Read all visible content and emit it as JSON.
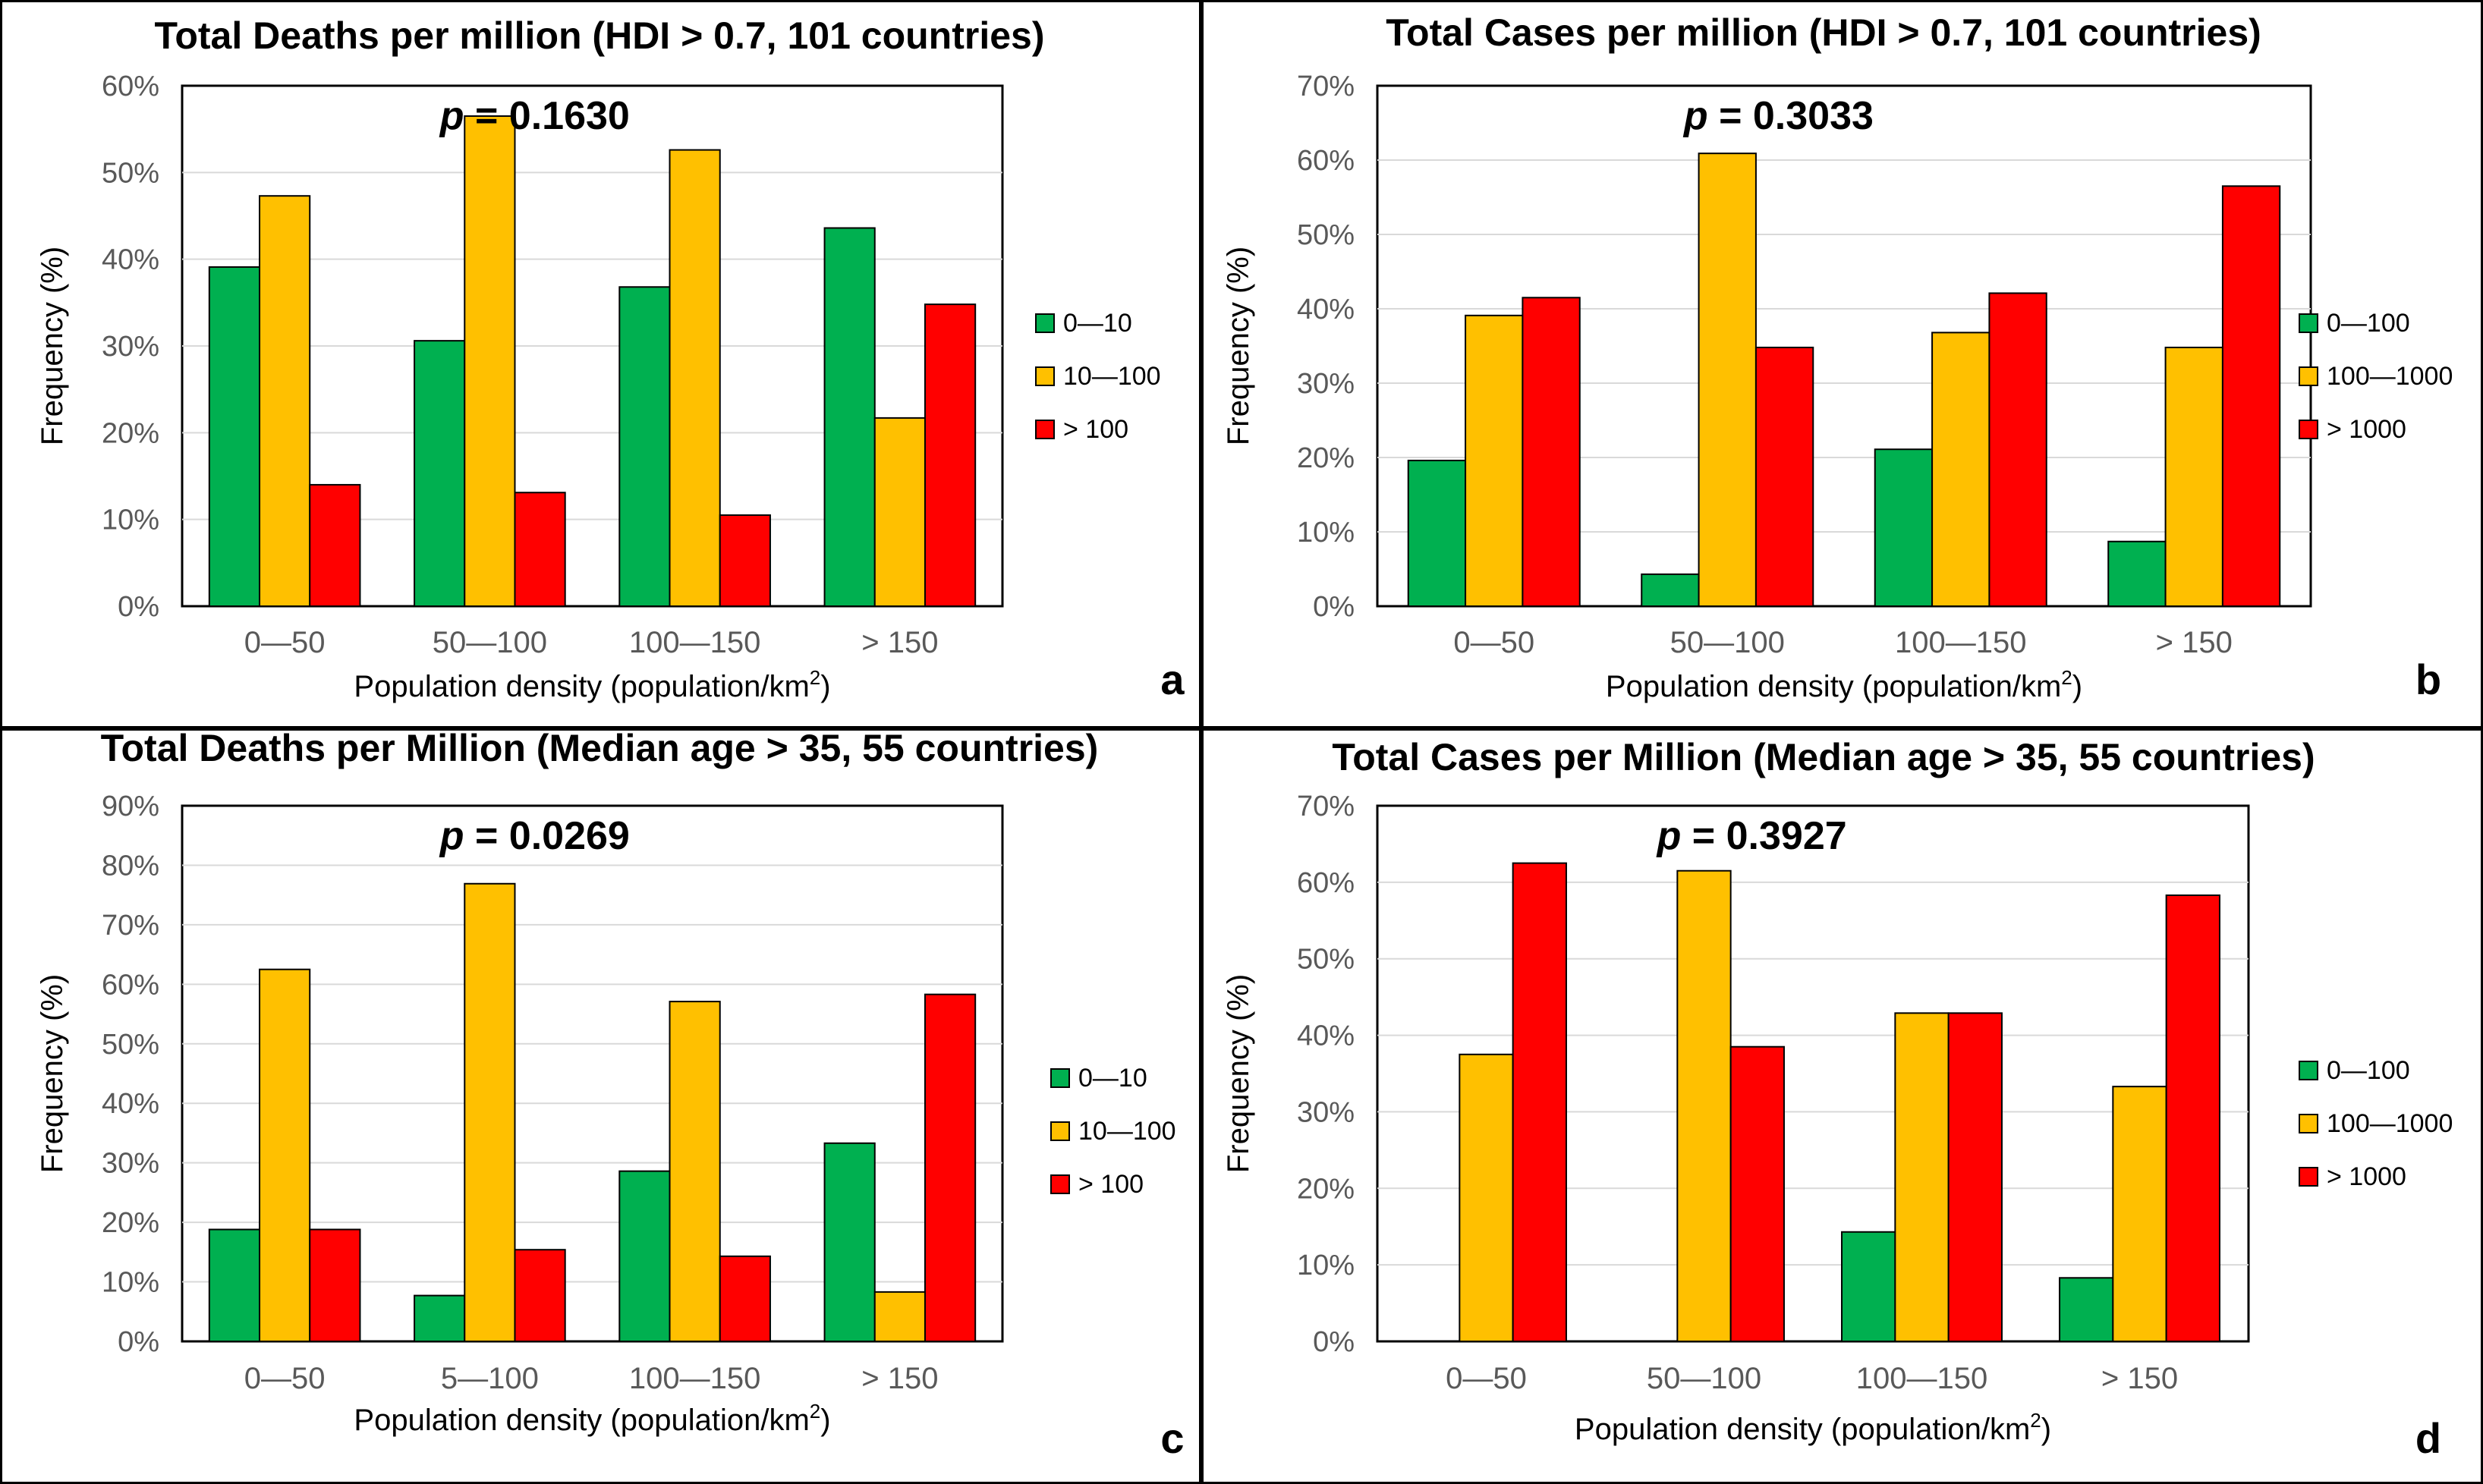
{
  "colors": {
    "green": "#00B050",
    "yellow": "#FFC000",
    "red": "#FF0000",
    "grid": "#D9D9D9",
    "tick": "#595959",
    "text": "#000000"
  },
  "chart_data": [
    {
      "type": "bar",
      "panel_label": "a",
      "title": "Total Deaths per million (HDI > 0.7, 101 countries)",
      "p_label": "p",
      "p_text": " = 0.1630",
      "xlabel": "Population density (population/km",
      "xlabel_sup": "2",
      "xlabel_end": ")",
      "ylabel": "Frequency (%)",
      "ylim": [
        0,
        60
      ],
      "ytick_step": 10,
      "categories": [
        "0—50",
        "50—100",
        "100—150",
        "> 150"
      ],
      "series": [
        {
          "name": "0—10",
          "color": "#00B050",
          "values": [
            39.1,
            30.6,
            36.8,
            43.6
          ]
        },
        {
          "name": "10—100",
          "color": "#FFC000",
          "values": [
            47.3,
            56.5,
            52.6,
            21.7
          ]
        },
        {
          "name": "> 100",
          "color": "#FF0000",
          "values": [
            14.0,
            13.1,
            10.5,
            34.8
          ]
        }
      ]
    },
    {
      "type": "bar",
      "panel_label": "b",
      "title": "Total Cases per million (HDI > 0.7, 101 countries)",
      "p_label": "p",
      "p_text": " = 0.3033",
      "xlabel": "Population density (population/km",
      "xlabel_sup": "2",
      "xlabel_end": ")",
      "ylabel": "Frequency (%)",
      "ylim": [
        0,
        70
      ],
      "ytick_step": 10,
      "categories": [
        "0—50",
        "50—100",
        "100—150",
        "> 150"
      ],
      "series": [
        {
          "name": "0—100",
          "color": "#00B050",
          "values": [
            19.6,
            4.3,
            21.1,
            8.7
          ]
        },
        {
          "name": "100—1000",
          "color": "#FFC000",
          "values": [
            39.1,
            60.9,
            36.8,
            34.8
          ]
        },
        {
          "name": "> 1000",
          "color": "#FF0000",
          "values": [
            41.5,
            34.8,
            42.1,
            56.5
          ]
        }
      ]
    },
    {
      "type": "bar",
      "panel_label": "c",
      "title": "Total Deaths per Million (Median age > 35, 55 countries)",
      "p_label": "p",
      "p_text": " = 0.0269",
      "xlabel": "Population density (population/km",
      "xlabel_sup": "2",
      "xlabel_end": ")",
      "ylabel": "Frequency (%)",
      "ylim": [
        0,
        90
      ],
      "ytick_step": 10,
      "categories": [
        "0—50",
        "5—100",
        "100—150",
        "> 150"
      ],
      "series": [
        {
          "name": "0—10",
          "color": "#00B050",
          "values": [
            18.8,
            7.7,
            28.6,
            33.3
          ]
        },
        {
          "name": "10—100",
          "color": "#FFC000",
          "values": [
            62.5,
            76.9,
            57.1,
            8.3
          ]
        },
        {
          "name": "> 100",
          "color": "#FF0000",
          "values": [
            18.8,
            15.4,
            14.3,
            58.3
          ]
        }
      ]
    },
    {
      "type": "bar",
      "panel_label": "d",
      "title": "Total Cases per Million (Median age > 35, 55 countries)",
      "p_label": "p",
      "p_text": " = 0.3927",
      "xlabel": "Population density (population/km",
      "xlabel_sup": "2",
      "xlabel_end": ")",
      "ylabel": "Frequency (%)",
      "ylim": [
        0,
        70
      ],
      "ytick_step": 10,
      "categories": [
        "0—50",
        "50—100",
        "100—150",
        "> 150"
      ],
      "series": [
        {
          "name": "0—100",
          "color": "#00B050",
          "values": [
            0,
            0,
            14.3,
            8.3
          ]
        },
        {
          "name": "100—1000",
          "color": "#FFC000",
          "values": [
            37.5,
            61.5,
            42.9,
            33.3
          ]
        },
        {
          "name": "> 1000",
          "color": "#FF0000",
          "values": [
            62.5,
            38.5,
            42.9,
            58.3
          ]
        }
      ]
    }
  ]
}
